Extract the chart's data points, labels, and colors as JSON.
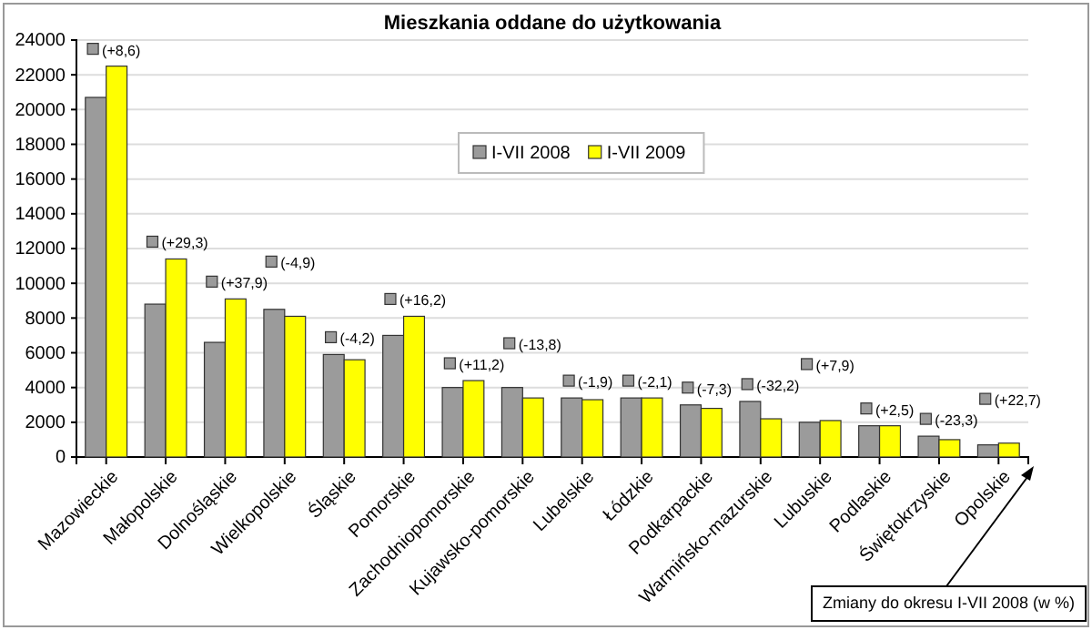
{
  "chart_data": {
    "type": "bar",
    "title": "Mieszkania oddane do użytkowania",
    "categories": [
      "Mazowieckie",
      "Małopolskie",
      "Dolnośląskie",
      "Wielkopolskie",
      "Śląskie",
      "Pomorskie",
      "Zachodniopomorskie",
      "Kujawsko-pomorskie",
      "Lubelskie",
      "Łódzkie",
      "Podkarpackie",
      "Warmińsko-mazurskie",
      "Lubuskie",
      "Podlaskie",
      "Świętokrzyskie",
      "Opolskie"
    ],
    "series": [
      {
        "name": "I-VII 2008",
        "color": "#9b9b9b",
        "values": [
          20700,
          8800,
          6600,
          8500,
          5900,
          7000,
          4000,
          4000,
          3400,
          3400,
          3000,
          3200,
          2000,
          1800,
          1200,
          700
        ]
      },
      {
        "name": "I-VII 2009",
        "color": "#ffff00",
        "values": [
          22500,
          11400,
          9100,
          8100,
          5600,
          8100,
          4400,
          3400,
          3300,
          3400,
          2800,
          2200,
          2100,
          1800,
          1000,
          800
        ]
      }
    ],
    "ylim": [
      0,
      24000
    ],
    "yticks": [
      0,
      2000,
      4000,
      6000,
      8000,
      10000,
      12000,
      14000,
      16000,
      18000,
      20000,
      22000,
      24000
    ],
    "grid": "y",
    "legend": "top",
    "annotations": [
      "(+8,6)",
      "(+29,3)",
      "(+37,9)",
      "(-4,9)",
      "(-4,2)",
      "(+16,2)",
      "(+11,2)",
      "(-13,8)",
      "(-1,9)",
      "(-2,1)",
      "(-7,3)",
      "(-32,2)",
      "(+7,9)",
      "(+2,5)",
      "(-23,3)",
      "(+22,7)",
      "Zmiany do okresu I-VII 2008 (w  %)"
    ]
  }
}
